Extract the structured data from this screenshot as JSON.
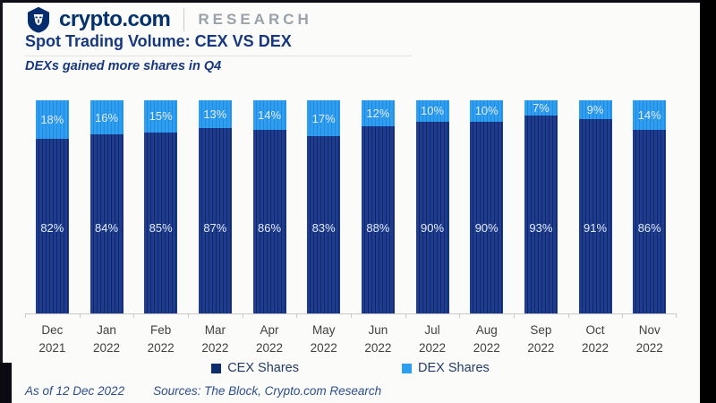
{
  "header": {
    "brand": "crypto.com",
    "division": "RESEARCH"
  },
  "title": "Spot Trading Volume: CEX VS DEX",
  "subtitle": "DEXs gained more shares in Q4",
  "chart_data": {
    "type": "bar",
    "stacked": true,
    "percent": true,
    "unit": "%",
    "title": "Spot Trading Volume: CEX VS DEX",
    "categories": [
      "Dec 2021",
      "Jan 2022",
      "Feb 2022",
      "Mar 2022",
      "Apr 2022",
      "May 2022",
      "Jun 2022",
      "Jul 2022",
      "Aug 2022",
      "Sep 2022",
      "Oct 2022",
      "Nov 2022"
    ],
    "series": [
      {
        "name": "CEX Shares",
        "color": "#1d3c92",
        "stripe_color": "#11285f",
        "values": [
          82,
          84,
          85,
          87,
          86,
          83,
          88,
          90,
          90,
          93,
          91,
          86
        ]
      },
      {
        "name": "DEX Shares",
        "color": "#2e9ef0",
        "stripe_color": "#2389dd",
        "values": [
          18,
          16,
          15,
          13,
          14,
          17,
          12,
          10,
          10,
          7,
          9,
          14
        ]
      }
    ],
    "ylim": [
      0,
      100
    ],
    "grid": false,
    "legend_position": "bottom",
    "value_labels": "inside"
  },
  "legend": [
    {
      "label": "CEX Shares",
      "color": "#0d2d6c",
      "key": "cex"
    },
    {
      "label": "DEX Shares",
      "color": "#2e9ef0",
      "key": "dex"
    }
  ],
  "footer": {
    "as_of": "As of 12 Dec 2022",
    "sources": "Sources: The Block, Crypto.com Research"
  },
  "colors": {
    "brand_navy": "#03316c",
    "title_navy": "#17387e",
    "research_gray": "#9aa1a9",
    "axis_gray": "#c9c9c9"
  }
}
